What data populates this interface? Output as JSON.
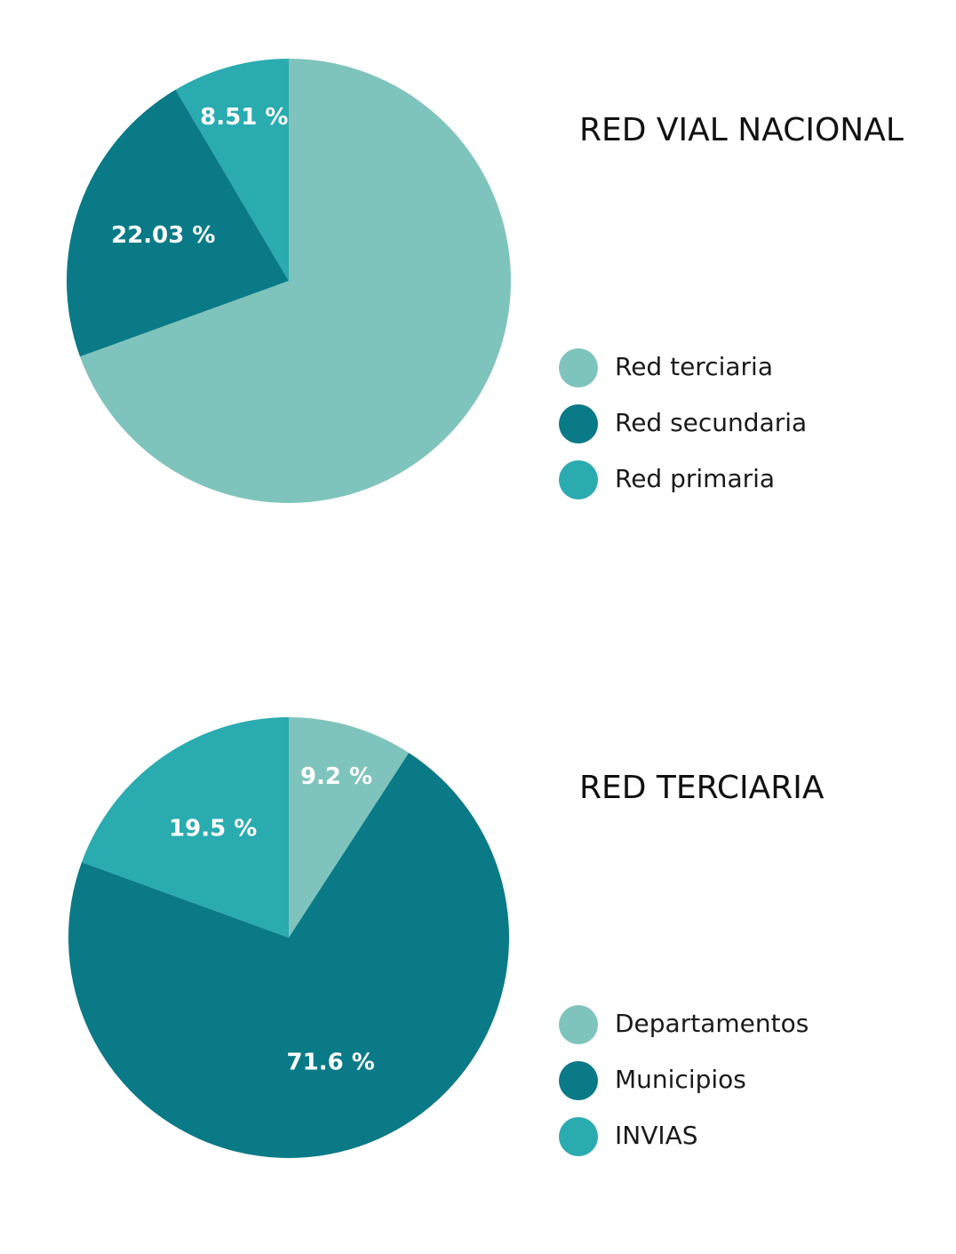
{
  "chart_data": [
    {
      "type": "pie",
      "title": "RED VIAL NACIONAL",
      "categories": [
        "Red terciaria",
        "Red secundaria",
        "Red primaria"
      ],
      "values": [
        69.46,
        22.03,
        8.51
      ],
      "value_labels": [
        null,
        "22.03 %",
        "8.51 %"
      ],
      "colors": [
        "#7fc4bc",
        "#0a7a87",
        "#2aabb0"
      ]
    },
    {
      "type": "pie",
      "title": "RED TERCIARIA",
      "categories": [
        "Departamentos",
        "Municipios",
        "INVIAS"
      ],
      "values": [
        9.2,
        71.6,
        19.5
      ],
      "value_labels": [
        "9.2 %",
        "71.6 %",
        "19.5 %"
      ],
      "colors": [
        "#7fc4bc",
        "#0a7a87",
        "#2aabb0"
      ]
    }
  ]
}
